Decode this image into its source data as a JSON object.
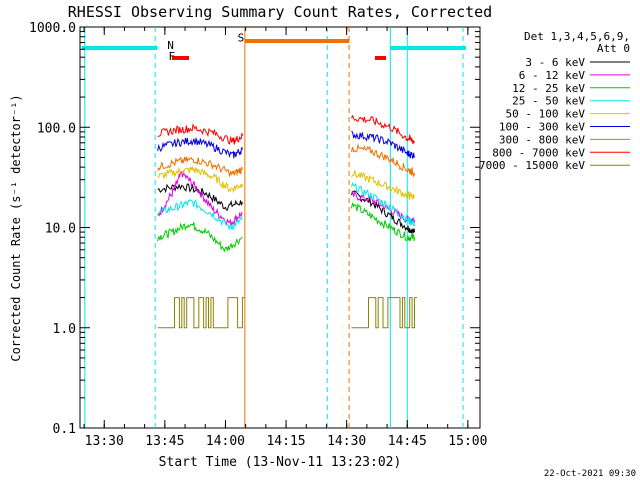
{
  "chart_data": {
    "type": "line",
    "title": "RHESSI Observing Summary Count Rates, Corrected",
    "xlabel": "Start Time (13-Nov-11 13:23:02)",
    "ylabel": "Corrected Count Rate (s⁻¹ detector⁻¹)",
    "yscale": "log",
    "ylim": [
      0.1,
      1000
    ],
    "xlim_minutes": [
      13.4,
      15.05
    ],
    "x_ticks": [
      {
        "label": "13:30",
        "t": 13.5
      },
      {
        "label": "13:45",
        "t": 13.75
      },
      {
        "label": "14:00",
        "t": 14.0
      },
      {
        "label": "14:15",
        "t": 14.25
      },
      {
        "label": "14:30",
        "t": 14.5
      },
      {
        "label": "14:45",
        "t": 14.75
      },
      {
        "label": "15:00",
        "t": 15.0
      }
    ],
    "y_ticks": [
      {
        "label": "0.1",
        "v": 0.1
      },
      {
        "label": "1.0",
        "v": 1.0
      },
      {
        "label": "10.0",
        "v": 10.0
      },
      {
        "label": "100.0",
        "v": 100.0
      },
      {
        "label": "1000.0",
        "v": 1000.0
      }
    ],
    "legend_header": [
      "Det 1,3,4,5,6,9,",
      "Att 0"
    ],
    "legend_placement": "top-right",
    "date_stamp": "22-Oct-2021 09:30",
    "series": [
      {
        "name": "3 - 6 keV",
        "color": "#000000",
        "seg1": [
          [
            13.72,
            24
          ],
          [
            13.82,
            26
          ],
          [
            13.92,
            22
          ],
          [
            14.0,
            16
          ],
          [
            14.07,
            18
          ]
        ],
        "seg2": [
          [
            14.52,
            22
          ],
          [
            14.6,
            18
          ],
          [
            14.68,
            13
          ],
          [
            14.75,
            10
          ],
          [
            14.78,
            9
          ]
        ]
      },
      {
        "name": "6 - 12 keV",
        "color": "#e000e0",
        "seg1": [
          [
            13.72,
            13
          ],
          [
            13.78,
            22
          ],
          [
            13.82,
            35
          ],
          [
            13.88,
            25
          ],
          [
            13.95,
            15
          ],
          [
            14.02,
            11
          ],
          [
            14.07,
            14
          ]
        ],
        "seg2": [
          [
            14.52,
            21
          ],
          [
            14.6,
            19
          ],
          [
            14.68,
            15
          ],
          [
            14.75,
            12
          ],
          [
            14.78,
            12
          ]
        ]
      },
      {
        "name": "12 - 25 keV",
        "color": "#00cc00",
        "seg1": [
          [
            13.72,
            8
          ],
          [
            13.78,
            9
          ],
          [
            13.85,
            11
          ],
          [
            13.92,
            9
          ],
          [
            14.0,
            6
          ],
          [
            14.07,
            8
          ]
        ],
        "seg2": [
          [
            14.52,
            17
          ],
          [
            14.6,
            13
          ],
          [
            14.68,
            10
          ],
          [
            14.75,
            8
          ],
          [
            14.78,
            8
          ]
        ]
      },
      {
        "name": "25 - 50 keV",
        "color": "#00e8e8",
        "seg1": [
          [
            13.72,
            14
          ],
          [
            13.8,
            16
          ],
          [
            13.86,
            18
          ],
          [
            13.94,
            14
          ],
          [
            14.02,
            10
          ],
          [
            14.07,
            12
          ]
        ],
        "seg2": [
          [
            14.52,
            26
          ],
          [
            14.6,
            21
          ],
          [
            14.68,
            16
          ],
          [
            14.75,
            12
          ],
          [
            14.78,
            11
          ]
        ]
      },
      {
        "name": "50 - 100 keV",
        "color": "#e0c000",
        "seg1": [
          [
            13.72,
            32
          ],
          [
            13.8,
            36
          ],
          [
            13.87,
            38
          ],
          [
            13.95,
            32
          ],
          [
            14.02,
            24
          ],
          [
            14.07,
            27
          ]
        ],
        "seg2": [
          [
            14.52,
            35
          ],
          [
            14.6,
            30
          ],
          [
            14.68,
            25
          ],
          [
            14.75,
            21
          ],
          [
            14.78,
            20
          ]
        ]
      },
      {
        "name": "100 - 300 keV",
        "color": "#0000dd",
        "seg1": [
          [
            13.72,
            62
          ],
          [
            13.8,
            70
          ],
          [
            13.87,
            74
          ],
          [
            13.95,
            64
          ],
          [
            14.03,
            52
          ],
          [
            14.07,
            60
          ]
        ],
        "seg2": [
          [
            14.52,
            85
          ],
          [
            14.6,
            80
          ],
          [
            14.68,
            70
          ],
          [
            14.75,
            55
          ],
          [
            14.78,
            52
          ]
        ]
      },
      {
        "name": "300 - 800 keV",
        "color": "#f07000",
        "seg1": [
          [
            13.72,
            40
          ],
          [
            13.8,
            45
          ],
          [
            13.87,
            48
          ],
          [
            13.95,
            42
          ],
          [
            14.03,
            34
          ],
          [
            14.07,
            38
          ]
        ],
        "seg2": [
          [
            14.52,
            62
          ],
          [
            14.6,
            58
          ],
          [
            14.68,
            48
          ],
          [
            14.75,
            38
          ],
          [
            14.78,
            35
          ]
        ]
      },
      {
        "name": "800 - 7000 keV",
        "color": "#ff0000",
        "seg1": [
          [
            13.72,
            86
          ],
          [
            13.8,
            94
          ],
          [
            13.87,
            98
          ],
          [
            13.95,
            88
          ],
          [
            14.03,
            72
          ],
          [
            14.07,
            82
          ]
        ],
        "seg2": [
          [
            14.52,
            125
          ],
          [
            14.6,
            118
          ],
          [
            14.68,
            100
          ],
          [
            14.75,
            78
          ],
          [
            14.78,
            72
          ]
        ]
      },
      {
        "name": "7000 - 15000 keV",
        "color": "#8a8400",
        "seg1": [
          [
            13.72,
            1.0
          ],
          [
            13.75,
            1.0
          ],
          [
            13.9,
            1.0
          ],
          [
            14.07,
            1.0
          ]
        ],
        "seg2": [
          [
            14.52,
            1.0
          ],
          [
            14.78,
            1.0
          ]
        ]
      }
    ],
    "annotations": [
      {
        "label": "N",
        "color": "#00e8e8",
        "t": 13.76,
        "v": 600
      },
      {
        "label": "F",
        "color": "#ff0000",
        "t": 13.765,
        "v": 470
      },
      {
        "label": "S",
        "color": "#f07000",
        "t": 14.05,
        "v": 720
      }
    ]
  }
}
